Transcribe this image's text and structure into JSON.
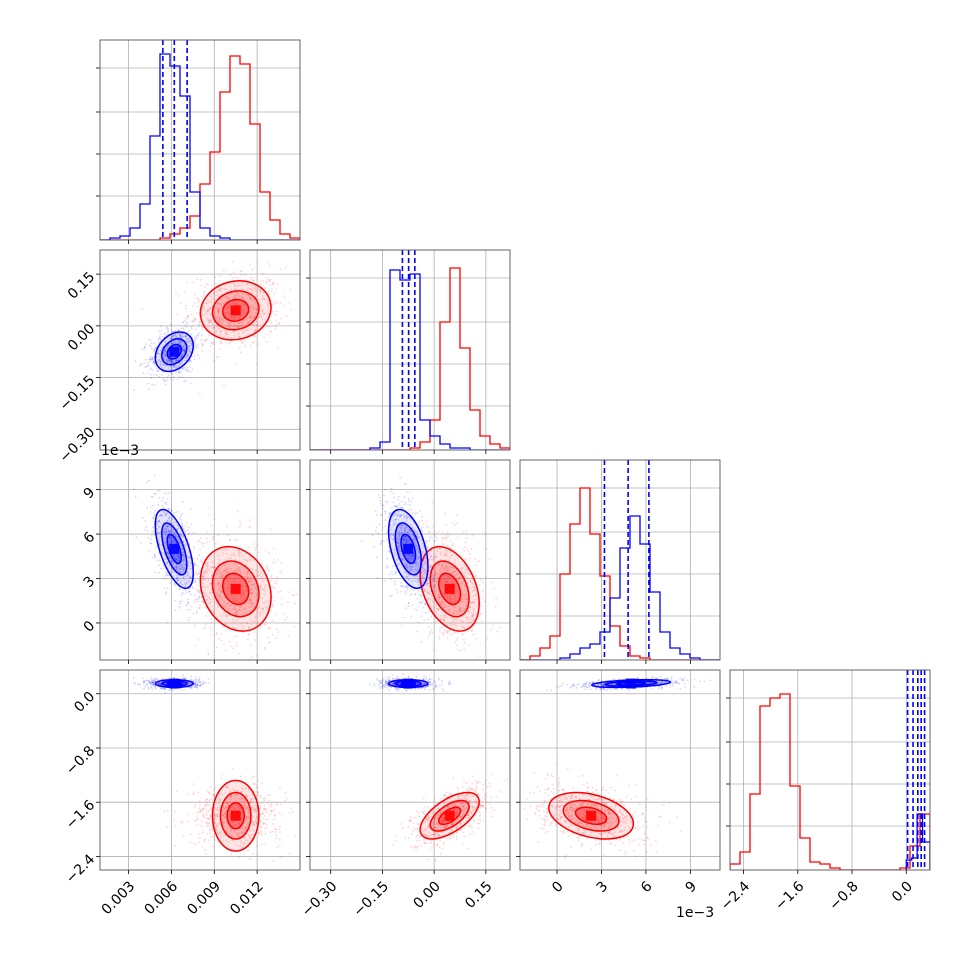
{
  "chart_data": {
    "type": "corner",
    "series": [
      {
        "name": "",
        "color": "#ff0000"
      },
      {
        "name": "",
        "color": "#0000ff"
      }
    ],
    "parameters": [
      {
        "ticks": [
          "0.003",
          "0.006",
          "0.009",
          "0.012"
        ],
        "tick_values": [
          0.003,
          0.006,
          0.009,
          0.012
        ],
        "range": [
          0.001,
          0.015
        ]
      },
      {
        "ticks": [
          "−0.30",
          "−0.15",
          "0.00",
          "0.15"
        ],
        "tick_values": [
          -0.3,
          -0.15,
          0.0,
          0.15
        ],
        "range": [
          -0.36,
          0.22
        ]
      },
      {
        "ticks": [
          "0",
          "3",
          "6",
          "9"
        ],
        "tick_values": [
          0,
          3,
          6,
          9
        ],
        "range": [
          -2.5,
          11
        ],
        "offset_label": "1e−3"
      },
      {
        "ticks": [
          "−2.4",
          "−1.6",
          "−0.8",
          "0.0"
        ],
        "tick_values": [
          -2.4,
          -1.6,
          -0.8,
          0.0
        ],
        "range": [
          -2.6,
          0.35
        ]
      }
    ],
    "histograms": [
      {
        "red": {
          "edges": [
            0.001,
            0.0017,
            0.0024,
            0.0031,
            0.0038,
            0.0045,
            0.0052,
            0.0059,
            0.0066,
            0.0073,
            0.008,
            0.0087,
            0.0094,
            0.0101,
            0.0108,
            0.0115,
            0.0122,
            0.0129,
            0.0136,
            0.0143,
            0.015
          ],
          "counts": [
            0,
            0,
            0,
            0,
            0,
            0,
            0.01,
            0.03,
            0.06,
            0.12,
            0.28,
            0.44,
            0.74,
            0.92,
            0.88,
            0.58,
            0.24,
            0.1,
            0.03,
            0.01
          ]
        },
        "blue": {
          "edges": [
            0.001,
            0.0017,
            0.0024,
            0.0031,
            0.0038,
            0.0045,
            0.0052,
            0.0059,
            0.0066,
            0.0073,
            0.008,
            0.0087,
            0.0094,
            0.0101,
            0.0108,
            0.0115,
            0.0122,
            0.0129,
            0.0136,
            0.0143,
            0.015
          ],
          "counts": [
            0,
            0.01,
            0.02,
            0.06,
            0.18,
            0.52,
            0.93,
            0.87,
            0.72,
            0.24,
            0.06,
            0.02,
            0.01,
            0,
            0,
            0,
            0,
            0,
            0,
            0
          ]
        },
        "quantiles_blue": [
          0.0054,
          0.0062,
          0.0071
        ]
      },
      {
        "red": {
          "edges": [
            -0.36,
            -0.331,
            -0.302,
            -0.273,
            -0.244,
            -0.215,
            -0.186,
            -0.157,
            -0.128,
            -0.099,
            -0.07,
            -0.041,
            -0.012,
            0.017,
            0.046,
            0.075,
            0.104,
            0.133,
            0.162,
            0.191,
            0.22
          ],
          "counts": [
            0,
            0,
            0,
            0,
            0,
            0,
            0,
            0,
            0,
            0,
            0.01,
            0.04,
            0.15,
            0.64,
            0.91,
            0.51,
            0.2,
            0.07,
            0.03,
            0.01
          ]
        },
        "blue": {
          "edges": [
            -0.36,
            -0.331,
            -0.302,
            -0.273,
            -0.244,
            -0.215,
            -0.186,
            -0.157,
            -0.128,
            -0.099,
            -0.07,
            -0.041,
            -0.012,
            0.017,
            0.046,
            0.075,
            0.104,
            0.133,
            0.162,
            0.191,
            0.22
          ],
          "counts": [
            0,
            0,
            0,
            0,
            0,
            0,
            0.01,
            0.04,
            0.9,
            0.85,
            0.88,
            0.15,
            0.07,
            0.03,
            0.01,
            0.01,
            0,
            0,
            0,
            0
          ]
        },
        "quantiles_blue": [
          -0.092,
          -0.074,
          -0.056
        ]
      },
      {
        "red": {
          "edges": [
            -2.5,
            -1.825,
            -1.15,
            -0.475,
            0.2,
            0.875,
            1.55,
            2.225,
            2.9,
            3.575,
            4.25,
            4.925,
            5.6,
            6.275,
            6.95,
            7.625,
            8.3,
            8.975,
            9.65,
            10.325,
            11
          ],
          "counts": [
            0,
            0.02,
            0.06,
            0.12,
            0.43,
            0.68,
            0.86,
            0.63,
            0.42,
            0.17,
            0.07,
            0.02,
            0.01,
            0,
            0,
            0,
            0,
            0,
            0,
            0
          ]
        },
        "blue": {
          "edges": [
            -2.5,
            -1.825,
            -1.15,
            -0.475,
            0.2,
            0.875,
            1.55,
            2.225,
            2.9,
            3.575,
            4.25,
            4.925,
            5.6,
            6.275,
            6.95,
            7.625,
            8.3,
            8.975,
            9.65,
            10.325,
            11
          ],
          "counts": [
            0,
            0,
            0,
            0,
            0.01,
            0.03,
            0.06,
            0.08,
            0.14,
            0.31,
            0.56,
            0.72,
            0.58,
            0.34,
            0.14,
            0.06,
            0.03,
            0.01,
            0,
            0
          ]
        },
        "quantiles_blue": [
          3.2,
          4.8,
          6.2
        ]
      },
      {
        "red": {
          "edges": [
            -2.6,
            -2.4525,
            -2.305,
            -2.1575,
            -2.01,
            -1.8625,
            -1.715,
            -1.5675,
            -1.42,
            -1.2725,
            -1.125,
            -0.9775,
            -0.83,
            -0.6825,
            -0.535,
            -0.3875,
            -0.24,
            -0.0925,
            0.055,
            0.2025,
            0.35
          ],
          "counts": [
            0.03,
            0.09,
            0.38,
            0.82,
            0.86,
            0.88,
            0.42,
            0.16,
            0.04,
            0.03,
            0.01,
            0,
            0,
            0,
            0,
            0,
            0,
            0.01,
            0.12,
            0.28
          ]
        },
        "blue": {
          "edges": [
            0.0,
            0.08,
            0.16,
            0.24,
            0.35
          ],
          "counts": [
            0.05,
            0.06,
            0.28,
            0.14
          ]
        },
        "quantiles_blue": [
          0.02,
          0.1,
          0.17,
          0.22,
          0.27
        ]
      }
    ],
    "blobs": {
      "red": {
        "mean": [
          0.0105,
          0.045,
          2.3,
          -1.8
        ],
        "sd": [
          0.0013,
          0.045,
          1.5,
          0.18
        ]
      },
      "blue": {
        "mean": [
          0.0062,
          -0.075,
          5.0,
          0.15
        ],
        "sd": [
          0.0007,
          0.03,
          1.4,
          0.03
        ]
      }
    },
    "pair_corr": {
      "red": {
        "1-0": 0.1,
        "2-0": -0.2,
        "2-1": -0.35,
        "3-0": 0.0,
        "3-1": 0.6,
        "3-2": -0.35
      },
      "blue": {
        "1-0": 0.3,
        "2-0": -0.6,
        "2-1": -0.45,
        "3-0": 0.0,
        "3-1": 0.0,
        "3-2": 0.4
      }
    },
    "grid": true,
    "legend": "none"
  }
}
